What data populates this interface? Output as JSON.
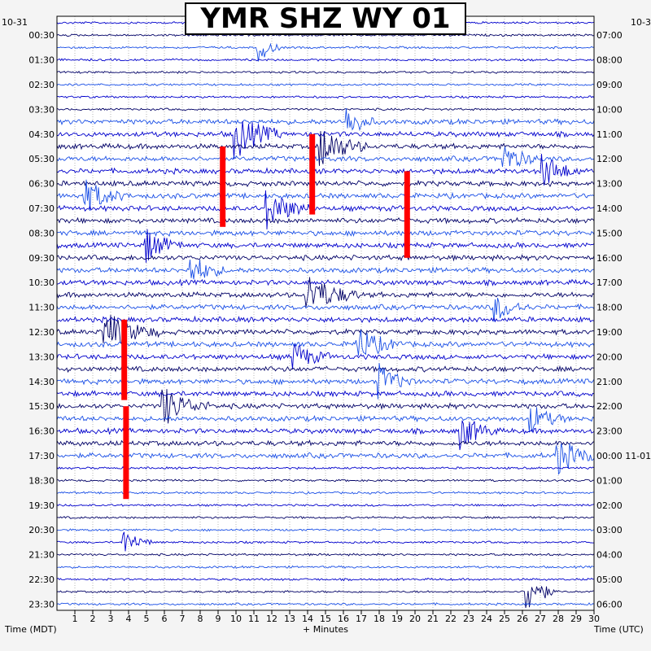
{
  "chart_data": {
    "type": "helicorder",
    "title": "YMR SHZ WY 01",
    "left_date": "10-31",
    "right_date": "10-3",
    "xlabel": "+ Minutes",
    "left_axis_label": "Time (MDT)",
    "right_axis_label": "Time (UTC)",
    "x_ticks": [
      1,
      2,
      3,
      4,
      5,
      6,
      7,
      8,
      9,
      10,
      11,
      12,
      13,
      14,
      15,
      16,
      17,
      18,
      19,
      20,
      21,
      22,
      23,
      24,
      25,
      26,
      27,
      28,
      29,
      30
    ],
    "xlim": [
      0,
      30
    ],
    "rows_per_hour": 2,
    "row_count": 48,
    "left_labels": [
      "00:30",
      "01:30",
      "02:30",
      "03:30",
      "04:30",
      "05:30",
      "06:30",
      "07:30",
      "08:30",
      "09:30",
      "10:30",
      "11:30",
      "12:30",
      "13:30",
      "14:30",
      "15:30",
      "16:30",
      "17:30",
      "18:30",
      "19:30",
      "20:30",
      "21:30",
      "22:30",
      "23:30"
    ],
    "right_labels": [
      "07:00",
      "08:00",
      "09:00",
      "10:00",
      "11:00",
      "12:00",
      "13:00",
      "14:00",
      "15:00",
      "16:00",
      "17:00",
      "18:00",
      "19:00",
      "20:00",
      "21:00",
      "22:00",
      "23:00",
      "00:00 11-01",
      "01:00",
      "02:00",
      "03:00",
      "04:00",
      "05:00",
      "06:00"
    ],
    "trace_colors": [
      "#0000cc",
      "#000066",
      "#1a4fe6"
    ],
    "clip_color": "#ff0000",
    "activity_band_rows": [
      8,
      35
    ],
    "events": [
      {
        "row": 2,
        "minute": 11.3,
        "amplitude": 2.2,
        "duration": 1.2
      },
      {
        "row": 8,
        "minute": 16.3,
        "amplitude": 2.2,
        "duration": 1.5
      },
      {
        "row": 9,
        "minute": 10.0,
        "amplitude": 3.5,
        "duration": 2.5
      },
      {
        "row": 10,
        "minute": 14.8,
        "amplitude": 3.0,
        "duration": 2.5
      },
      {
        "row": 11,
        "minute": 25.0,
        "amplitude": 2.0,
        "duration": 2.0
      },
      {
        "row": 12,
        "minute": 27.2,
        "amplitude": 2.5,
        "duration": 2.0
      },
      {
        "row": 14,
        "minute": 1.5,
        "amplitude": 2.5,
        "duration": 2.5
      },
      {
        "row": 15,
        "minute": 11.8,
        "amplitude": 2.8,
        "duration": 2.5
      },
      {
        "row": 18,
        "minute": 5.0,
        "amplitude": 2.5,
        "duration": 2.0
      },
      {
        "row": 20,
        "minute": 7.5,
        "amplitude": 2.2,
        "duration": 2.0
      },
      {
        "row": 22,
        "minute": 14.0,
        "amplitude": 3.0,
        "duration": 3.0
      },
      {
        "row": 23,
        "minute": 24.5,
        "amplitude": 2.0,
        "duration": 2.0
      },
      {
        "row": 25,
        "minute": 2.7,
        "amplitude": 3.0,
        "duration": 3.0
      },
      {
        "row": 26,
        "minute": 16.8,
        "amplitude": 2.5,
        "duration": 2.5
      },
      {
        "row": 27,
        "minute": 13.3,
        "amplitude": 2.0,
        "duration": 2.0
      },
      {
        "row": 29,
        "minute": 18.0,
        "amplitude": 2.5,
        "duration": 2.0
      },
      {
        "row": 31,
        "minute": 6.0,
        "amplitude": 2.8,
        "duration": 2.5
      },
      {
        "row": 32,
        "minute": 26.5,
        "amplitude": 2.0,
        "duration": 2.0
      },
      {
        "row": 33,
        "minute": 22.6,
        "amplitude": 2.5,
        "duration": 2.0
      },
      {
        "row": 35,
        "minute": 28.0,
        "amplitude": 2.5,
        "duration": 2.5
      },
      {
        "row": 42,
        "minute": 3.8,
        "amplitude": 2.0,
        "duration": 1.5
      },
      {
        "row": 46,
        "minute": 26.3,
        "amplitude": 3.5,
        "duration": 1.5
      }
    ],
    "clipped_segments": [
      {
        "minute": 9.1,
        "start_row": 10.0,
        "end_row": 16.5
      },
      {
        "minute": 14.1,
        "start_row": 9.0,
        "end_row": 15.5
      },
      {
        "minute": 19.4,
        "start_row": 12.0,
        "end_row": 19.0
      },
      {
        "minute": 3.6,
        "start_row": 24.0,
        "end_row": 30.5
      },
      {
        "minute": 3.7,
        "start_row": 31.0,
        "end_row": 38.5
      }
    ]
  }
}
